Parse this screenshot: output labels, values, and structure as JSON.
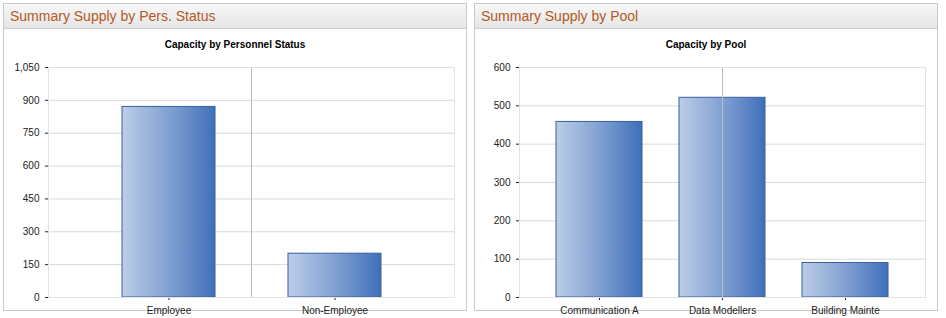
{
  "chart_data": [
    {
      "type": "bar",
      "panel_title": "Summary Supply by Pers. Status",
      "title": "Capacity by Personnel Status",
      "categories": [
        "Employee",
        "Non-Employee"
      ],
      "values": [
        870,
        200
      ],
      "color": "#3f6fba",
      "ylim": [
        0,
        1050
      ],
      "yticks": [
        0,
        150,
        300,
        450,
        600,
        750,
        900,
        {
          "value": 1050,
          "label": "1,050"
        }
      ],
      "grid": true
    },
    {
      "type": "bar",
      "panel_title": "Summary Supply by Pool",
      "title": "Capacity by Pool",
      "categories": [
        "Communication A",
        "Data Modellers",
        "Building Mainte"
      ],
      "values": [
        458,
        521,
        90
      ],
      "color": "#3f6fba",
      "ylim": [
        0,
        600
      ],
      "yticks": [
        0,
        100,
        200,
        300,
        400,
        500,
        600
      ],
      "grid": true
    }
  ]
}
